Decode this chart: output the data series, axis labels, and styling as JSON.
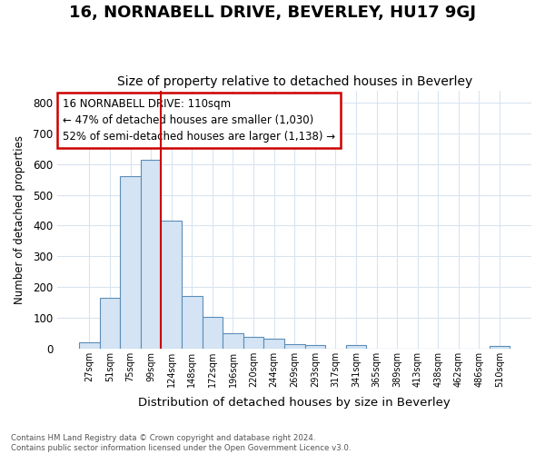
{
  "title": "16, NORNABELL DRIVE, BEVERLEY, HU17 9GJ",
  "subtitle": "Size of property relative to detached houses in Beverley",
  "xlabel": "Distribution of detached houses by size in Beverley",
  "ylabel": "Number of detached properties",
  "footnote": "Contains HM Land Registry data © Crown copyright and database right 2024.\nContains public sector information licensed under the Open Government Licence v3.0.",
  "bar_labels": [
    "27sqm",
    "51sqm",
    "75sqm",
    "99sqm",
    "124sqm",
    "148sqm",
    "172sqm",
    "196sqm",
    "220sqm",
    "244sqm",
    "269sqm",
    "293sqm",
    "317sqm",
    "341sqm",
    "365sqm",
    "389sqm",
    "413sqm",
    "438sqm",
    "462sqm",
    "486sqm",
    "510sqm"
  ],
  "bar_values": [
    20,
    165,
    560,
    615,
    415,
    170,
    103,
    50,
    38,
    33,
    15,
    10,
    0,
    10,
    0,
    0,
    0,
    0,
    0,
    0,
    8
  ],
  "bar_color": "#d4e4f4",
  "bar_edge_color": "#5b8db8",
  "prop_line_color": "#cc0000",
  "annotation_text": "16 NORNABELL DRIVE: 110sqm\n← 47% of detached houses are smaller (1,030)\n52% of semi-detached houses are larger (1,138) →",
  "annotation_box_color": "#cc0000",
  "ylim": [
    0,
    840
  ],
  "yticks": [
    0,
    100,
    200,
    300,
    400,
    500,
    600,
    700,
    800
  ],
  "bg_color": "#ffffff",
  "plot_bg_color": "#ffffff",
  "grid_color": "#d8e4f0",
  "title_fontsize": 13,
  "subtitle_fontsize": 10
}
